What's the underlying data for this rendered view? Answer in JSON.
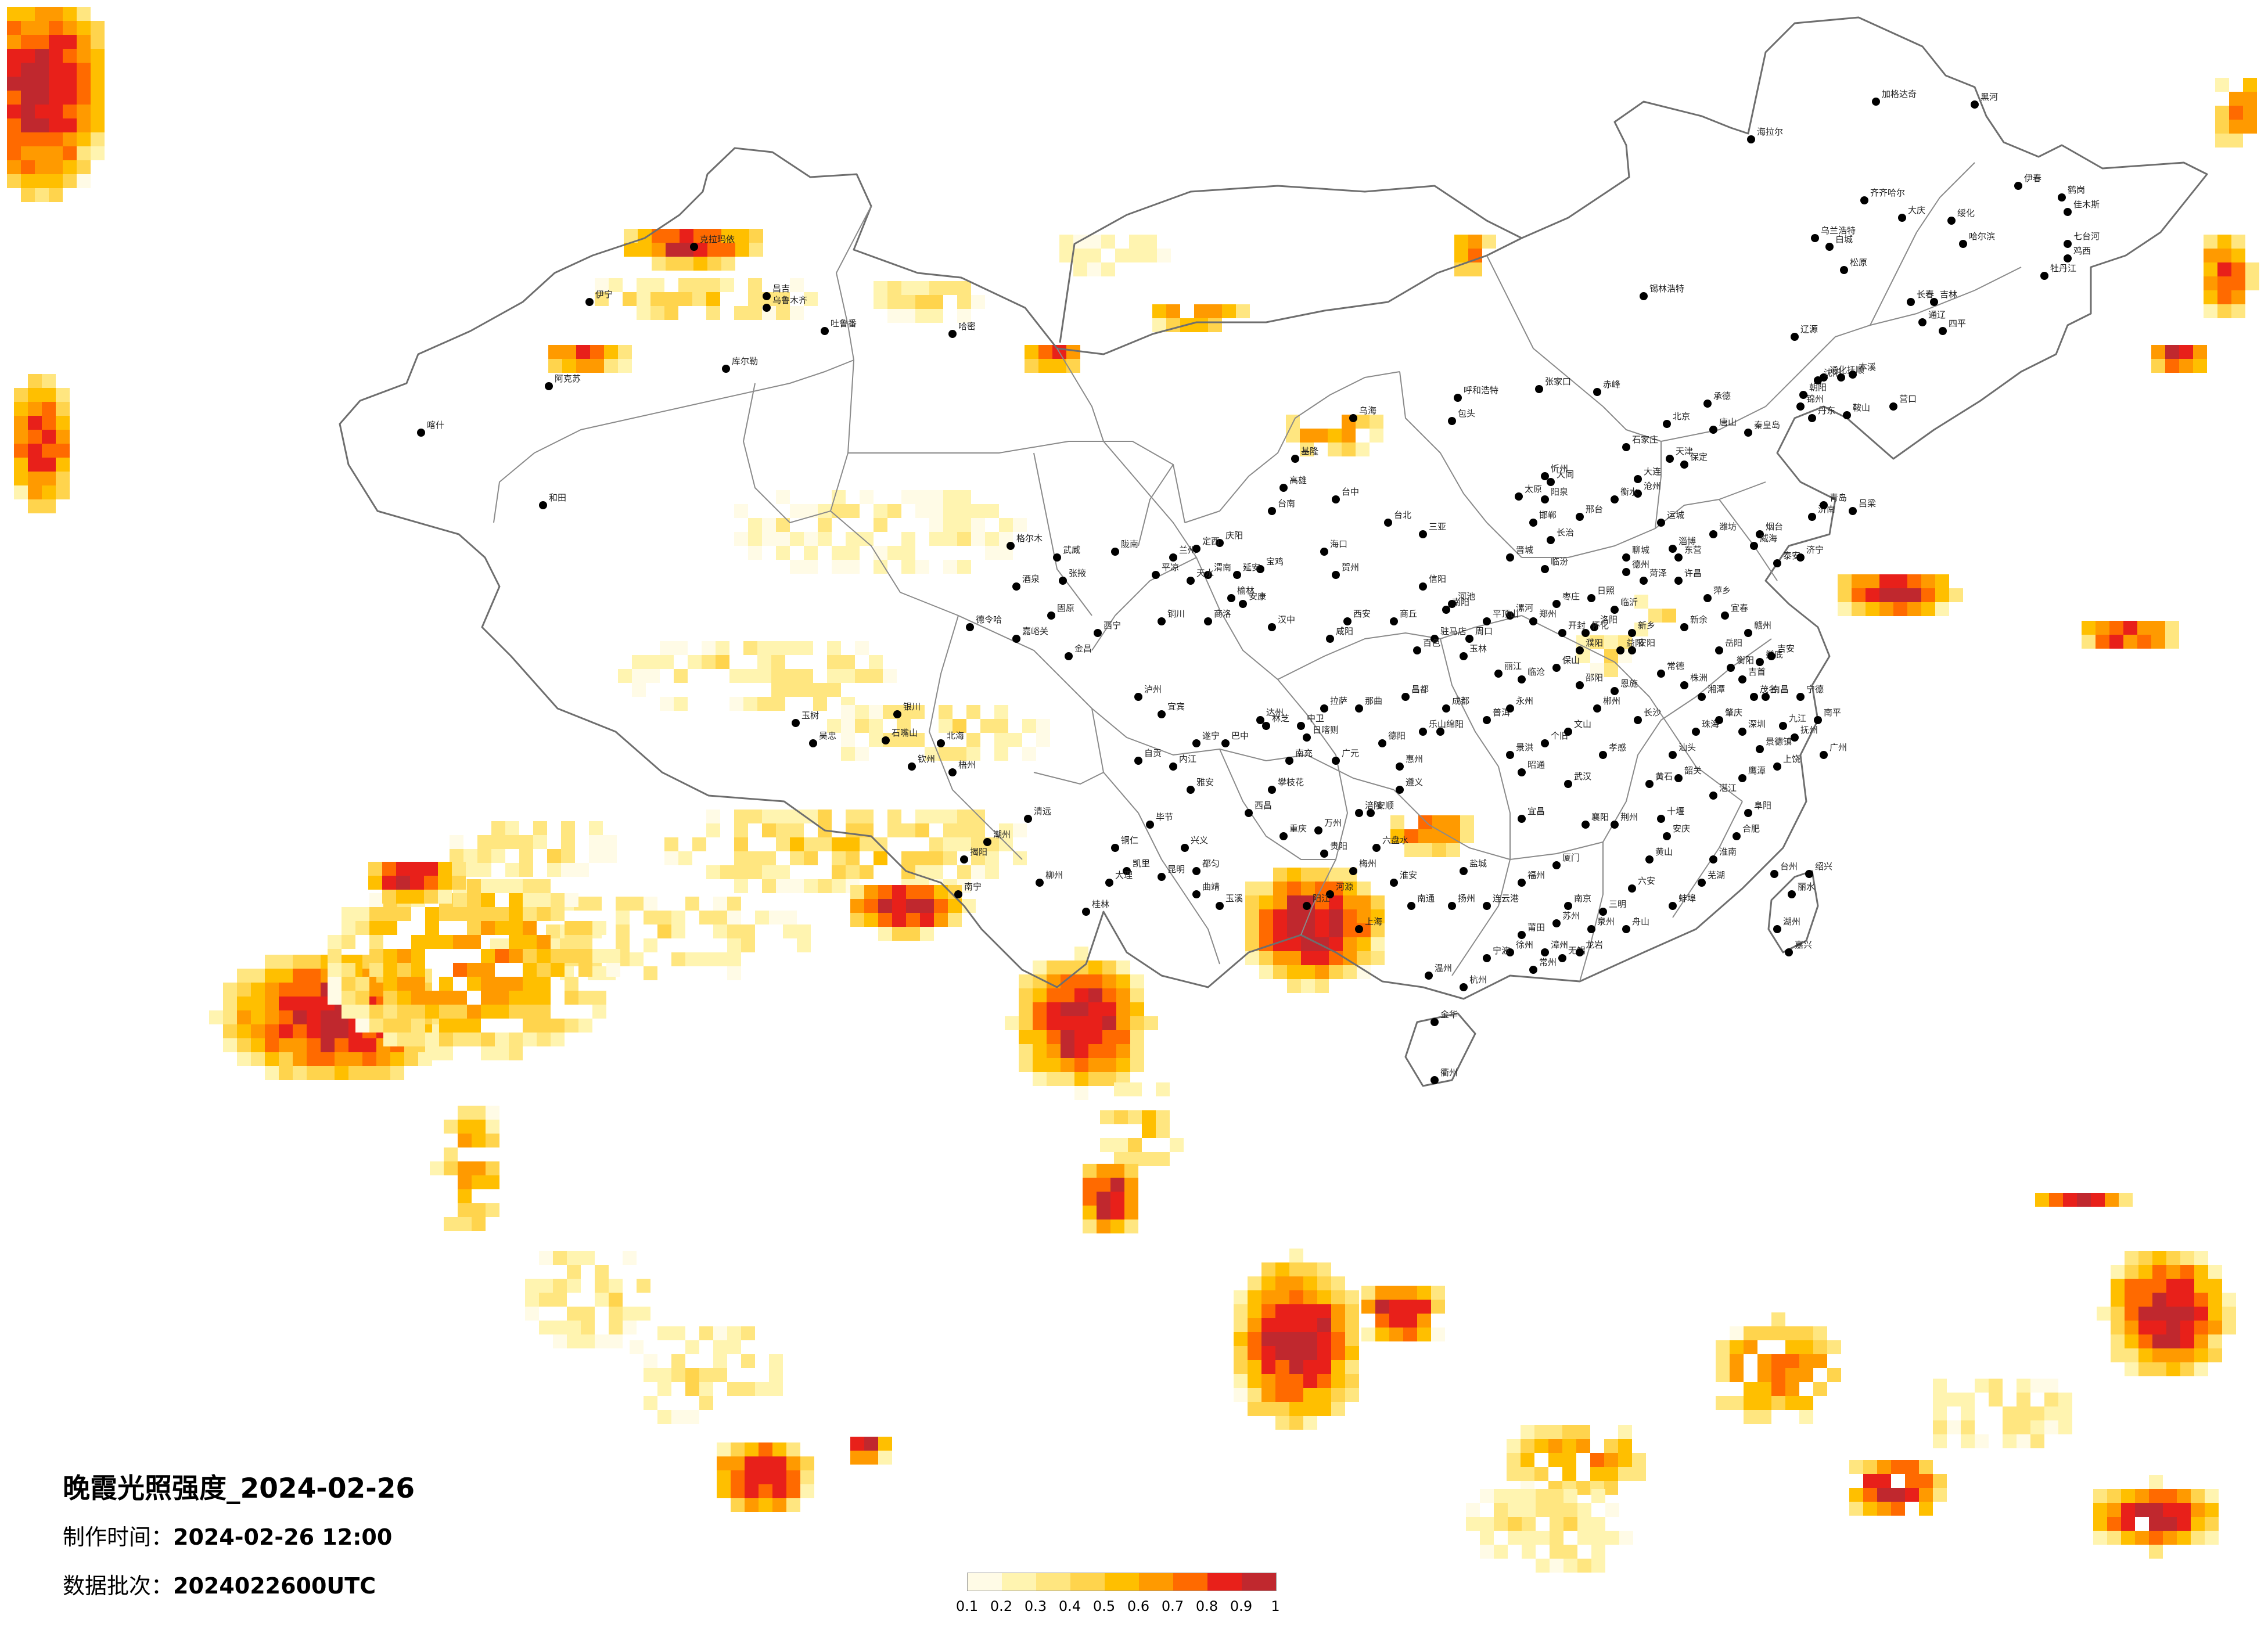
{
  "title": "晚霞光照强度_2024-02-26",
  "production": {
    "label": "制作时间：",
    "value": "2024-02-26 12:00"
  },
  "batch": {
    "label": "数据批次：",
    "value": "2024022600UTC"
  },
  "legend": {
    "colors": [
      "#fffbe6",
      "#fff4b0",
      "#ffe680",
      "#ffd44d",
      "#ffbf00",
      "#ff9a00",
      "#ff6a00",
      "#e8201a",
      "#c0282e"
    ],
    "ticks": [
      "0.1",
      "0.2",
      "0.3",
      "0.4",
      "0.5",
      "0.6",
      "0.7",
      "0.8",
      "0.9",
      "1"
    ]
  },
  "cities": [
    "克拉玛依",
    "昌吉",
    "乌鲁木齐",
    "伊宁",
    "吐鲁番",
    "哈密",
    "库尔勒",
    "阿克苏",
    "喀什",
    "和田",
    "海拉尔",
    "加格达奇",
    "黑河",
    "伊春",
    "鹤岗",
    "佳木斯",
    "七台河",
    "鸡西",
    "牡丹江",
    "齐齐哈尔",
    "大庆",
    "绥化",
    "哈尔滨",
    "乌兰浩特",
    "白城",
    "松原",
    "长春",
    "吉林",
    "通辽",
    "四平",
    "辽源",
    "通化",
    "锡林浩特",
    "呼和浩特",
    "包头",
    "乌海",
    "张家口",
    "北京",
    "天津",
    "唐山",
    "秦皇岛",
    "承德",
    "赤峰",
    "朝阳",
    "锦州",
    "沈阳",
    "抚顺",
    "本溪",
    "丹东",
    "鞍山",
    "营口",
    "大连",
    "石家庄",
    "保定",
    "沧州",
    "衡水",
    "邢台",
    "邯郸",
    "太原",
    "大同",
    "忻州",
    "阳泉",
    "长治",
    "晋城",
    "临汾",
    "运城",
    "吕梁",
    "济南",
    "青岛",
    "烟台",
    "威海",
    "潍坊",
    "淄博",
    "东营",
    "德州",
    "聊城",
    "泰安",
    "济宁",
    "菏泽",
    "临沂",
    "日照",
    "枣庄",
    "郑州",
    "开封",
    "洛阳",
    "新乡",
    "安阳",
    "濮阳",
    "许昌",
    "漯河",
    "平顶山",
    "南阳",
    "信阳",
    "周口",
    "驻马店",
    "商丘",
    "西安",
    "咸阳",
    "宝鸡",
    "延安",
    "榆林",
    "汉中",
    "安康",
    "商洛",
    "铜川",
    "渭南",
    "兰州",
    "天水",
    "平凉",
    "庆阳",
    "定西",
    "陇南",
    "武威",
    "张掖",
    "酒泉",
    "嘉峪关",
    "金昌",
    "西宁",
    "格尔木",
    "德令哈",
    "玉树",
    "银川",
    "石嘴山",
    "吴忠",
    "固原",
    "中卫",
    "拉萨",
    "日喀则",
    "林芝",
    "那曲",
    "昌都",
    "成都",
    "绵阳",
    "德阳",
    "广元",
    "南充",
    "达州",
    "巴中",
    "遂宁",
    "内江",
    "自贡",
    "宜宾",
    "泸州",
    "乐山",
    "雅安",
    "西昌",
    "攀枝花",
    "重庆",
    "万州",
    "涪陵",
    "贵阳",
    "遵义",
    "安顺",
    "六盘水",
    "毕节",
    "铜仁",
    "凯里",
    "都匀",
    "兴义",
    "昆明",
    "曲靖",
    "玉溪",
    "大理",
    "丽江",
    "保山",
    "临沧",
    "普洱",
    "景洪",
    "个旧",
    "文山",
    "昭通",
    "武汉",
    "宜昌",
    "襄阳",
    "荆州",
    "十堰",
    "黄石",
    "孝感",
    "恩施",
    "长沙",
    "株洲",
    "湘潭",
    "衡阳",
    "岳阳",
    "常德",
    "益阳",
    "邵阳",
    "怀化",
    "郴州",
    "永州",
    "娄底",
    "吉首",
    "南昌",
    "九江",
    "景德镇",
    "上饶",
    "鹰潭",
    "抚州",
    "吉安",
    "赣州",
    "宜春",
    "萍乡",
    "新余",
    "合肥",
    "芜湖",
    "蚌埠",
    "淮南",
    "阜阳",
    "安庆",
    "黄山",
    "六安",
    "南京",
    "苏州",
    "无锡",
    "常州",
    "徐州",
    "连云港",
    "盐城",
    "扬州",
    "南通",
    "淮安",
    "上海",
    "杭州",
    "宁波",
    "温州",
    "金华",
    "衢州",
    "台州",
    "丽水",
    "湖州",
    "嘉兴",
    "绍兴",
    "舟山",
    "福州",
    "厦门",
    "泉州",
    "漳州",
    "莆田",
    "龙岩",
    "三明",
    "南平",
    "宁德",
    "广州",
    "深圳",
    "珠海",
    "汕头",
    "韶关",
    "湛江",
    "茂名",
    "肇庆",
    "惠州",
    "梅州",
    "河源",
    "阳江",
    "清远",
    "潮州",
    "揭阳",
    "南宁",
    "柳州",
    "桂林",
    "梧州",
    "北海",
    "钦州",
    "玉林",
    "百色",
    "河池",
    "贺州",
    "海口",
    "三亚",
    "台北",
    "台中",
    "台南",
    "高雄",
    "基隆"
  ]
}
